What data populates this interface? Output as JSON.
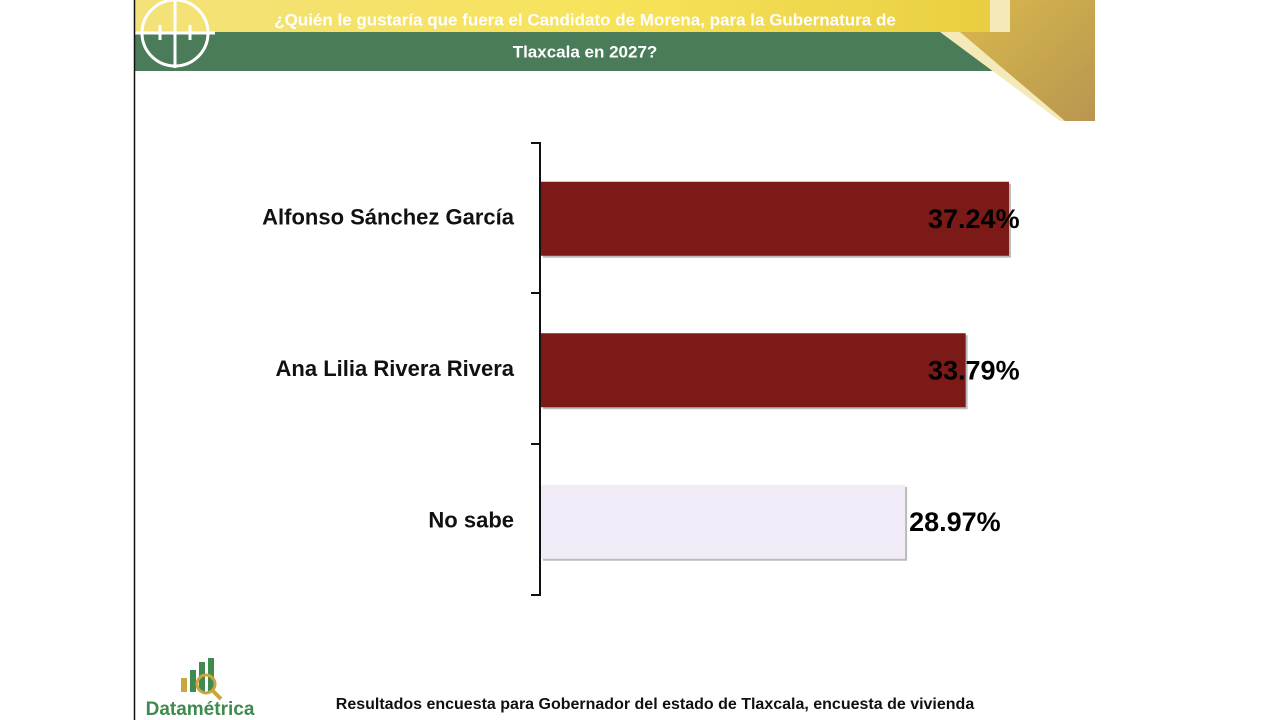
{
  "chart_data": {
    "type": "bar",
    "orientation": "horizontal",
    "title": [
      "¿Quién le gustaría que fuera el Candidato de Morena, para la Gubernatura de",
      "Tlaxcala en 2027?"
    ],
    "categories": [
      "Alfonso Sánchez García",
      "Ana Lilia Rivera Rivera",
      "No sabe"
    ],
    "values": [
      37.24,
      33.79,
      28.97
    ],
    "value_labels": [
      "37.24%",
      "33.79%",
      "28.97%"
    ],
    "colors": [
      "#7b1a16",
      "#7b1a16",
      "#f1ecf8"
    ]
  },
  "footer": "Resultados encuesta para Gobernador del estado de Tlaxcala, encuesta de vivienda",
  "logo": "Datamétrica"
}
